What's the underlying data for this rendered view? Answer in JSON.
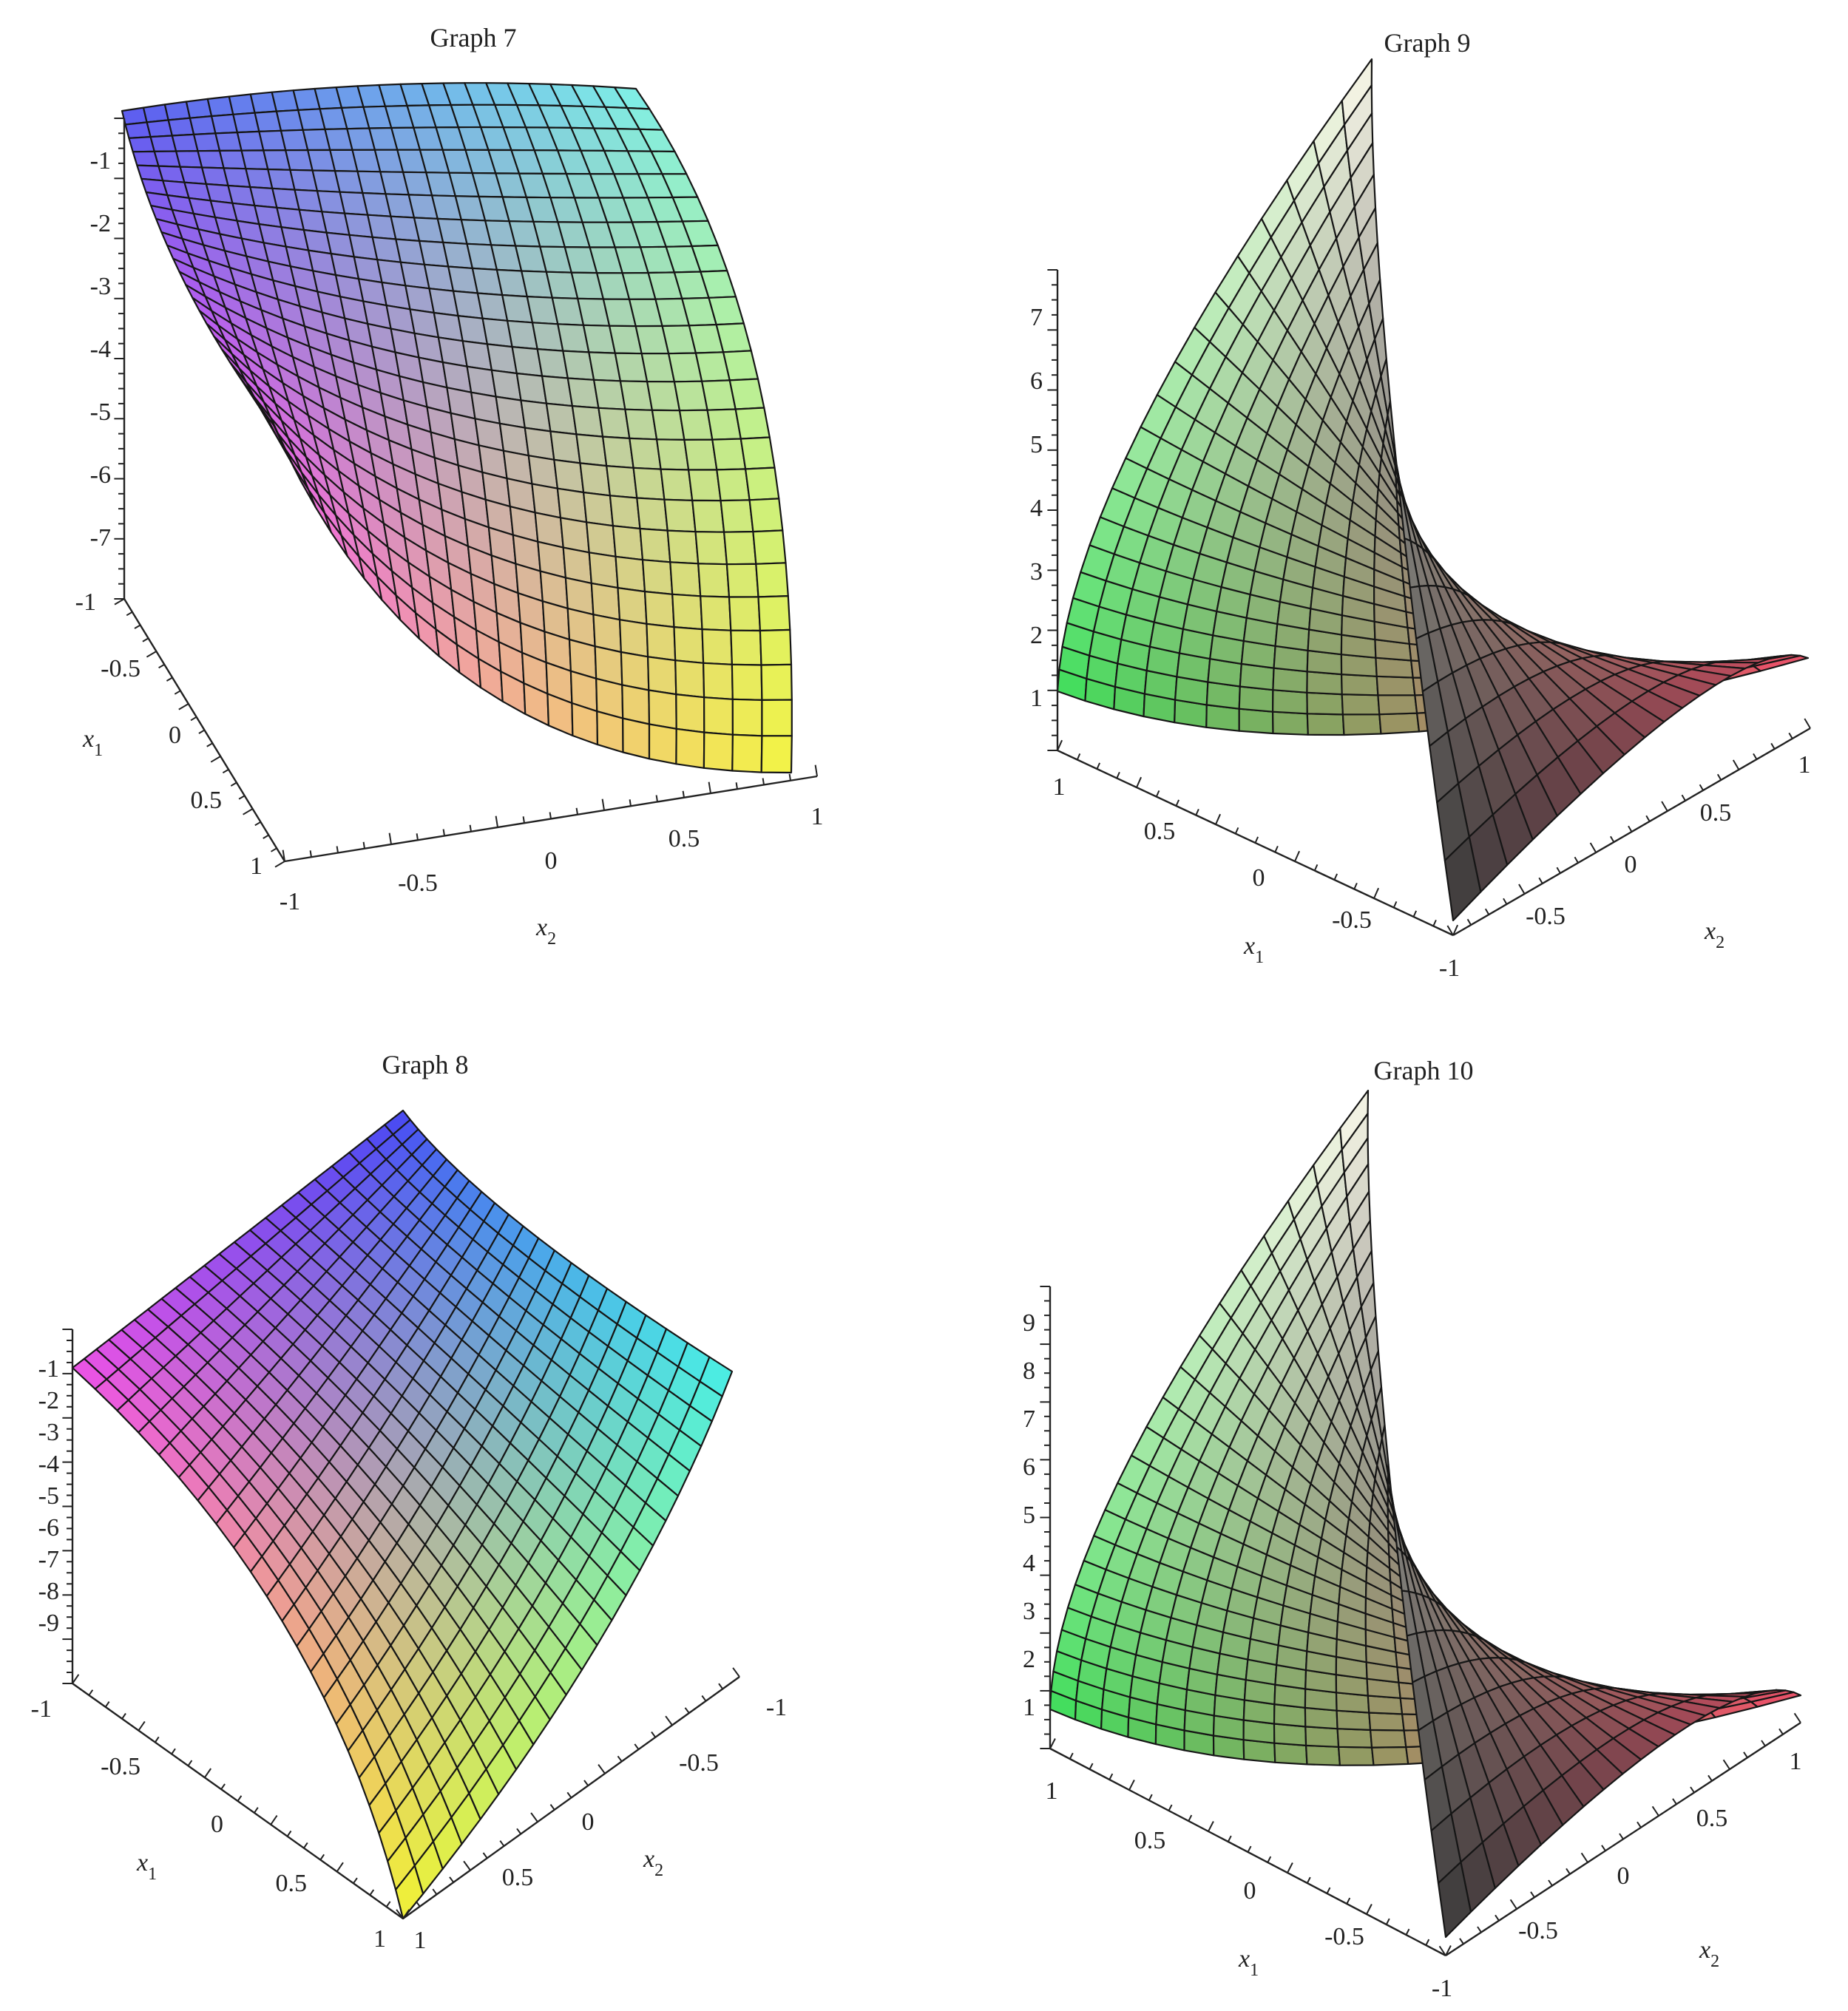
{
  "charts": [
    {
      "id": "graph7",
      "title": "Graph 7",
      "z_ticks": [
        "-1",
        "-2",
        "-3",
        "-4",
        "-5",
        "-6",
        "-7"
      ],
      "x1_ticks": [
        "-1",
        "-0.5",
        "0",
        "0.5",
        "1"
      ],
      "x2_ticks": [
        "-1",
        "-0.5",
        "0",
        "0.5",
        "1"
      ],
      "x1_label": "x",
      "x1_sub": "1",
      "x2_label": "x",
      "x2_sub": "2"
    },
    {
      "id": "graph9",
      "title": "Graph 9",
      "z_ticks": [
        "1",
        "2",
        "3",
        "4",
        "5",
        "6",
        "7"
      ],
      "x1_ticks": [
        "1",
        "0.5",
        "0",
        "-0.5",
        "-1"
      ],
      "x2_ticks": [
        "-0.5",
        "0",
        "0.5",
        "1"
      ],
      "x1_label": "x",
      "x1_sub": "1",
      "x2_label": "x",
      "x2_sub": "2"
    },
    {
      "id": "graph8",
      "title": "Graph 8",
      "z_ticks": [
        "-1",
        "-2",
        "-3",
        "-4",
        "-5",
        "-6",
        "-7",
        "-8",
        "-9"
      ],
      "x1_ticks": [
        "-1",
        "-0.5",
        "0",
        "0.5",
        "1"
      ],
      "x2_ticks": [
        "1",
        "0.5",
        "0",
        "-0.5",
        "-1"
      ],
      "x1_label": "x",
      "x1_sub": "1",
      "x2_label": "x",
      "x2_sub": "2"
    },
    {
      "id": "graph10",
      "title": "Graph 10",
      "z_ticks": [
        "1",
        "2",
        "3",
        "4",
        "5",
        "6",
        "7",
        "8",
        "9"
      ],
      "x1_ticks": [
        "1",
        "0.5",
        "0",
        "-0.5",
        "-1"
      ],
      "x2_ticks": [
        "-0.5",
        "0",
        "0.5",
        "1"
      ],
      "x1_label": "x",
      "x1_sub": "1",
      "x2_label": "x",
      "x2_sub": "2"
    }
  ],
  "chart_data": [
    {
      "type": "surface",
      "title": "Graph 7",
      "x1_range": [
        -1,
        1
      ],
      "x2_range": [
        -1,
        1
      ],
      "z_ticks": [
        -1,
        -2,
        -3,
        -4,
        -5,
        -6,
        -7
      ],
      "x1_ticks": [
        -1,
        -0.5,
        0,
        0.5,
        1
      ],
      "x2_ticks": [
        -1,
        -0.5,
        0,
        0.5,
        1
      ],
      "grid_n": 24,
      "colors": {
        "c00": "#5a5cf0",
        "c10": "#7ef0e8",
        "c01": "#f05af0",
        "c11": "#f5f542"
      }
    },
    {
      "type": "surface",
      "title": "Graph 9",
      "x1_range": [
        -1,
        1
      ],
      "x2_range": [
        -1,
        1
      ],
      "z_ticks": [
        1,
        2,
        3,
        4,
        5,
        6,
        7
      ],
      "x1_ticks": [
        1,
        0.5,
        0,
        -0.5,
        -1
      ],
      "x2_ticks": [
        -0.5,
        0,
        0.5,
        1
      ],
      "grid_n": 20,
      "colors": {
        "c00": "#3ce05a",
        "c10": "#f0506a",
        "c01": "#fbf7ea",
        "c11": "#3a3a3a"
      }
    },
    {
      "type": "surface",
      "title": "Graph 8",
      "x1_range": [
        -1,
        1
      ],
      "x2_range": [
        -1,
        1
      ],
      "z_ticks": [
        -1,
        -2,
        -3,
        -4,
        -5,
        -6,
        -7,
        -8,
        -9
      ],
      "x1_ticks": [
        -1,
        -0.5,
        0,
        0.5,
        1
      ],
      "x2_ticks": [
        1,
        0.5,
        0,
        -0.5,
        -1
      ],
      "grid_n": 22,
      "colors": {
        "c00": "#ee50e8",
        "c10": "#4848f2",
        "c01": "#f2f234",
        "c11": "#48f0e6"
      }
    },
    {
      "type": "surface",
      "title": "Graph 10",
      "x1_range": [
        -1,
        1
      ],
      "x2_range": [
        -1,
        1
      ],
      "z_ticks": [
        1,
        2,
        3,
        4,
        5,
        6,
        7,
        8,
        9
      ],
      "x1_ticks": [
        1,
        0.5,
        0,
        -0.5,
        -1
      ],
      "x2_ticks": [
        -0.5,
        0,
        0.5,
        1
      ],
      "grid_n": 22,
      "colors": {
        "c00": "#3ce05a",
        "c10": "#f0506a",
        "c01": "#fbf7ea",
        "c11": "#3a3a3a"
      }
    }
  ]
}
